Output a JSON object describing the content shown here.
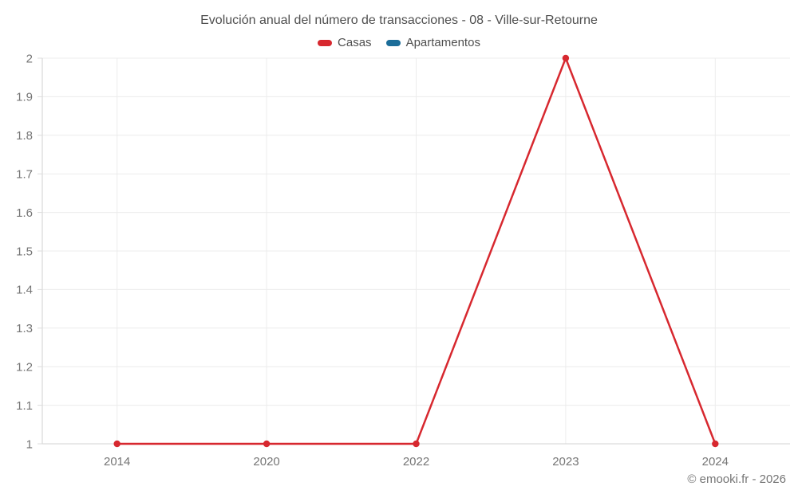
{
  "title": "Evolución anual del número de transacciones - 08 - Ville-sur-Retourne",
  "footer": {
    "copyright": "© emooki.fr - 2026"
  },
  "colors": {
    "casas": "#d7282f",
    "apartamentos": "#1c6d99",
    "grid": "#ececec",
    "axis": "#dcdcdc",
    "tick_text": "#757575",
    "title_text": "#4f4f4f"
  },
  "chart_data": {
    "type": "line",
    "title": "Evolución anual del número de transacciones - 08 - Ville-sur-Retourne",
    "categories": [
      "2014",
      "2020",
      "2022",
      "2023",
      "2024"
    ],
    "series": [
      {
        "name": "Casas",
        "color": "#d7282f",
        "values": [
          1,
          1,
          1,
          2,
          1
        ]
      },
      {
        "name": "Apartamentos",
        "color": "#1c6d99",
        "values": []
      }
    ],
    "xlabel": "",
    "ylabel": "",
    "ylim": [
      1,
      2
    ],
    "ytick_step": 0.1,
    "grid": true,
    "legend_position": "top",
    "marker": "circle"
  }
}
